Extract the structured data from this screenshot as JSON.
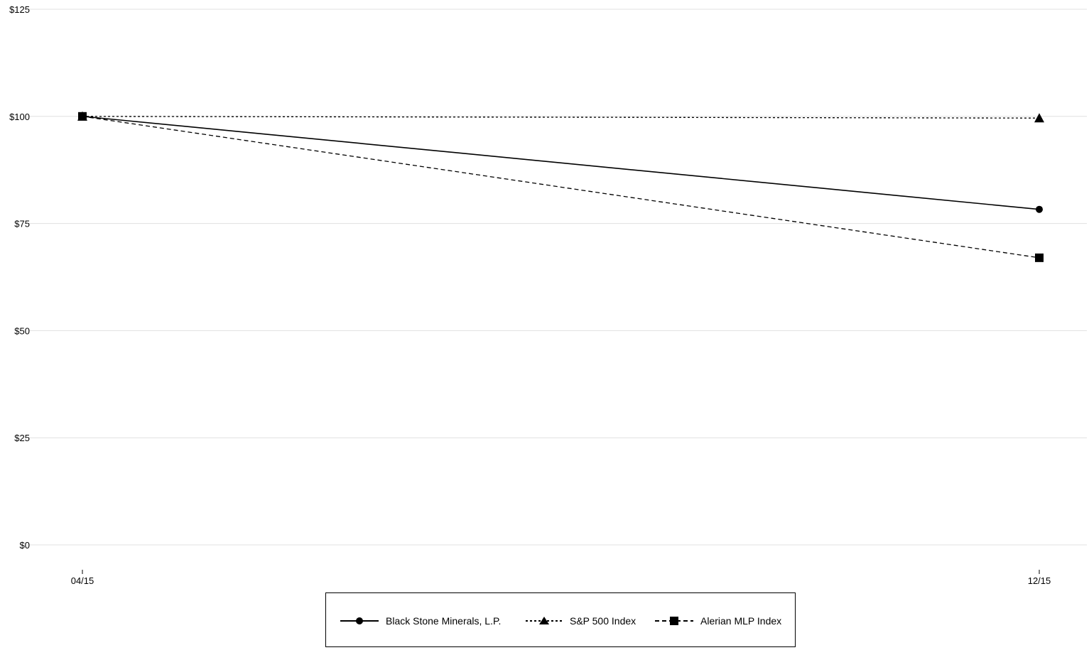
{
  "chart_data": {
    "type": "line",
    "categories": [
      "04/15",
      "12/15"
    ],
    "series": [
      {
        "name": "Black Stone Minerals, L.P.",
        "values": [
          100,
          78.3
        ],
        "marker": "circle",
        "dash": "solid",
        "color": "#000000"
      },
      {
        "name": "S&P 500 Index",
        "values": [
          100,
          99.6
        ],
        "marker": "triangle",
        "dash": "dotted",
        "color": "#000000"
      },
      {
        "name": "Alerian MLP Index",
        "values": [
          100,
          67.0
        ],
        "marker": "square",
        "dash": "dashed",
        "color": "#000000"
      }
    ],
    "yticks": [
      "$0",
      "$25",
      "$50",
      "$75",
      "$100",
      "$125"
    ],
    "ytick_values": [
      0,
      25,
      50,
      75,
      100,
      125
    ],
    "ylim": [
      0,
      125
    ],
    "grid": true,
    "gridcolor": "#e0e0e0",
    "legend_position": "bottom"
  }
}
